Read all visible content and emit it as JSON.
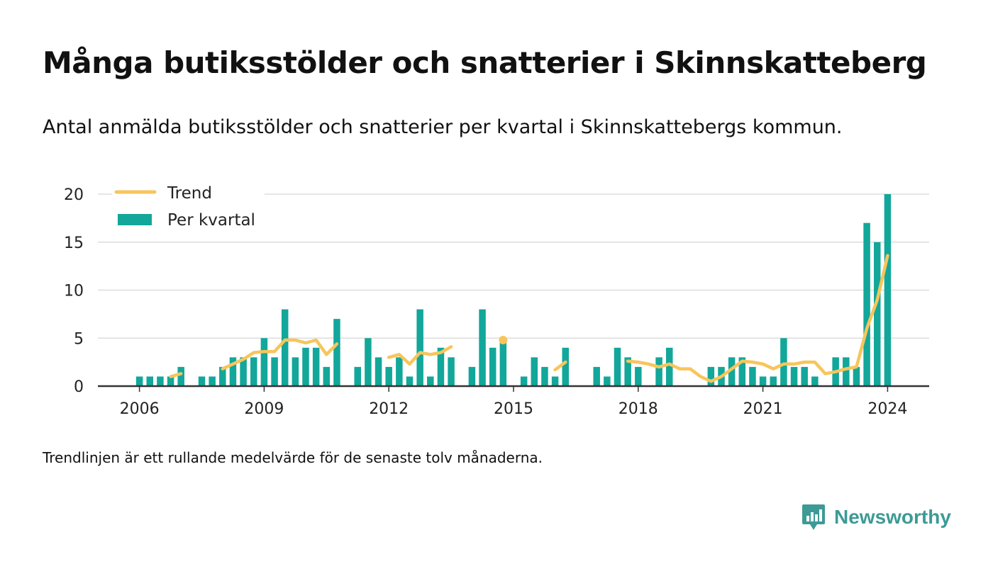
{
  "header": {
    "title": "Många butiksstölder och snatterier i Skinnskatteberg",
    "subtitle": "Antal anmälda butiksstölder och snatterier per kvartal i Skinnskattebergs kommun."
  },
  "footer": {
    "note": "Trendlinjen är ett rullande medelvärde för de senaste tolv månaderna.",
    "brand": "Newsworthy"
  },
  "colors": {
    "bars": "#12a79a",
    "trend": "#f7c55b",
    "grid": "#dddddd",
    "axis": "#333333",
    "brand": "#3d9a96"
  },
  "chart_data": {
    "type": "bar",
    "legend": [
      "Trend",
      "Per kvartal"
    ],
    "legend_position": "top-left",
    "grid": true,
    "x_ticks": [
      "2006",
      "2009",
      "2012",
      "2015",
      "2018",
      "2021",
      "2024"
    ],
    "y_ticks": [
      "0",
      "5",
      "10",
      "15",
      "20"
    ],
    "ylim": [
      0,
      20
    ],
    "xlim": [
      2005.0,
      2025.0
    ],
    "series": [
      {
        "name": "Per kvartal",
        "kind": "bar",
        "points": [
          [
            2006.0,
            1
          ],
          [
            2006.25,
            1
          ],
          [
            2006.5,
            1
          ],
          [
            2006.75,
            1
          ],
          [
            2007.0,
            2
          ],
          [
            2007.5,
            1
          ],
          [
            2007.75,
            1
          ],
          [
            2008.0,
            2
          ],
          [
            2008.25,
            3
          ],
          [
            2008.5,
            3
          ],
          [
            2008.75,
            3
          ],
          [
            2009.0,
            5
          ],
          [
            2009.25,
            3
          ],
          [
            2009.5,
            8
          ],
          [
            2009.75,
            3
          ],
          [
            2010.0,
            4
          ],
          [
            2010.25,
            4
          ],
          [
            2010.5,
            2
          ],
          [
            2010.75,
            7
          ],
          [
            2011.25,
            2
          ],
          [
            2011.5,
            5
          ],
          [
            2011.75,
            3
          ],
          [
            2012.0,
            2
          ],
          [
            2012.25,
            3
          ],
          [
            2012.5,
            1
          ],
          [
            2012.75,
            8
          ],
          [
            2013.0,
            1
          ],
          [
            2013.25,
            4
          ],
          [
            2013.5,
            3
          ],
          [
            2014.0,
            2
          ],
          [
            2014.25,
            8
          ],
          [
            2014.5,
            4
          ],
          [
            2014.75,
            5
          ],
          [
            2015.25,
            1
          ],
          [
            2015.5,
            3
          ],
          [
            2015.75,
            2
          ],
          [
            2016.0,
            1
          ],
          [
            2016.25,
            4
          ],
          [
            2017.0,
            2
          ],
          [
            2017.25,
            1
          ],
          [
            2017.5,
            4
          ],
          [
            2017.75,
            3
          ],
          [
            2018.0,
            2
          ],
          [
            2018.5,
            3
          ],
          [
            2018.75,
            4
          ],
          [
            2019.75,
            2
          ],
          [
            2020.0,
            2
          ],
          [
            2020.25,
            3
          ],
          [
            2020.5,
            3
          ],
          [
            2020.75,
            2
          ],
          [
            2021.0,
            1
          ],
          [
            2021.25,
            1
          ],
          [
            2021.5,
            5
          ],
          [
            2021.75,
            2
          ],
          [
            2022.0,
            2
          ],
          [
            2022.25,
            1
          ],
          [
            2022.75,
            3
          ],
          [
            2023.0,
            3
          ],
          [
            2023.25,
            2
          ],
          [
            2023.5,
            17
          ],
          [
            2023.75,
            15
          ],
          [
            2024.0,
            20
          ]
        ]
      },
      {
        "name": "Trend",
        "kind": "line",
        "segments": [
          [
            [
              2006.75,
              1.0
            ],
            [
              2007.0,
              1.3
            ]
          ],
          [
            [
              2008.0,
              1.8
            ],
            [
              2008.25,
              2.3
            ],
            [
              2008.5,
              2.8
            ],
            [
              2008.75,
              3.5
            ],
            [
              2009.0,
              3.6
            ],
            [
              2009.25,
              3.6
            ],
            [
              2009.5,
              4.8
            ],
            [
              2009.75,
              4.8
            ],
            [
              2010.0,
              4.5
            ],
            [
              2010.25,
              4.8
            ],
            [
              2010.5,
              3.3
            ],
            [
              2010.75,
              4.4
            ]
          ],
          [
            [
              2012.0,
              3.0
            ],
            [
              2012.25,
              3.3
            ],
            [
              2012.5,
              2.3
            ],
            [
              2012.75,
              3.5
            ],
            [
              2013.0,
              3.3
            ],
            [
              2013.25,
              3.5
            ],
            [
              2013.5,
              4.1
            ]
          ],
          [
            [
              2014.75,
              4.8
            ]
          ],
          [
            [
              2016.0,
              1.7
            ],
            [
              2016.25,
              2.5
            ]
          ],
          [
            [
              2017.75,
              2.6
            ],
            [
              2018.0,
              2.5
            ],
            [
              2018.25,
              2.3
            ],
            [
              2018.5,
              2.0
            ],
            [
              2018.75,
              2.3
            ],
            [
              2019.0,
              1.8
            ],
            [
              2019.25,
              1.8
            ],
            [
              2019.5,
              1.0
            ],
            [
              2019.75,
              0.5
            ],
            [
              2020.0,
              1.0
            ],
            [
              2020.25,
              1.8
            ],
            [
              2020.5,
              2.6
            ],
            [
              2020.75,
              2.5
            ],
            [
              2021.0,
              2.3
            ],
            [
              2021.25,
              1.8
            ],
            [
              2021.5,
              2.3
            ],
            [
              2021.75,
              2.3
            ],
            [
              2022.0,
              2.5
            ],
            [
              2022.25,
              2.5
            ],
            [
              2022.5,
              1.3
            ],
            [
              2022.75,
              1.5
            ],
            [
              2023.0,
              1.8
            ],
            [
              2023.25,
              2.0
            ],
            [
              2023.5,
              6.0
            ],
            [
              2023.75,
              9.0
            ],
            [
              2024.0,
              13.6
            ]
          ]
        ]
      }
    ]
  }
}
